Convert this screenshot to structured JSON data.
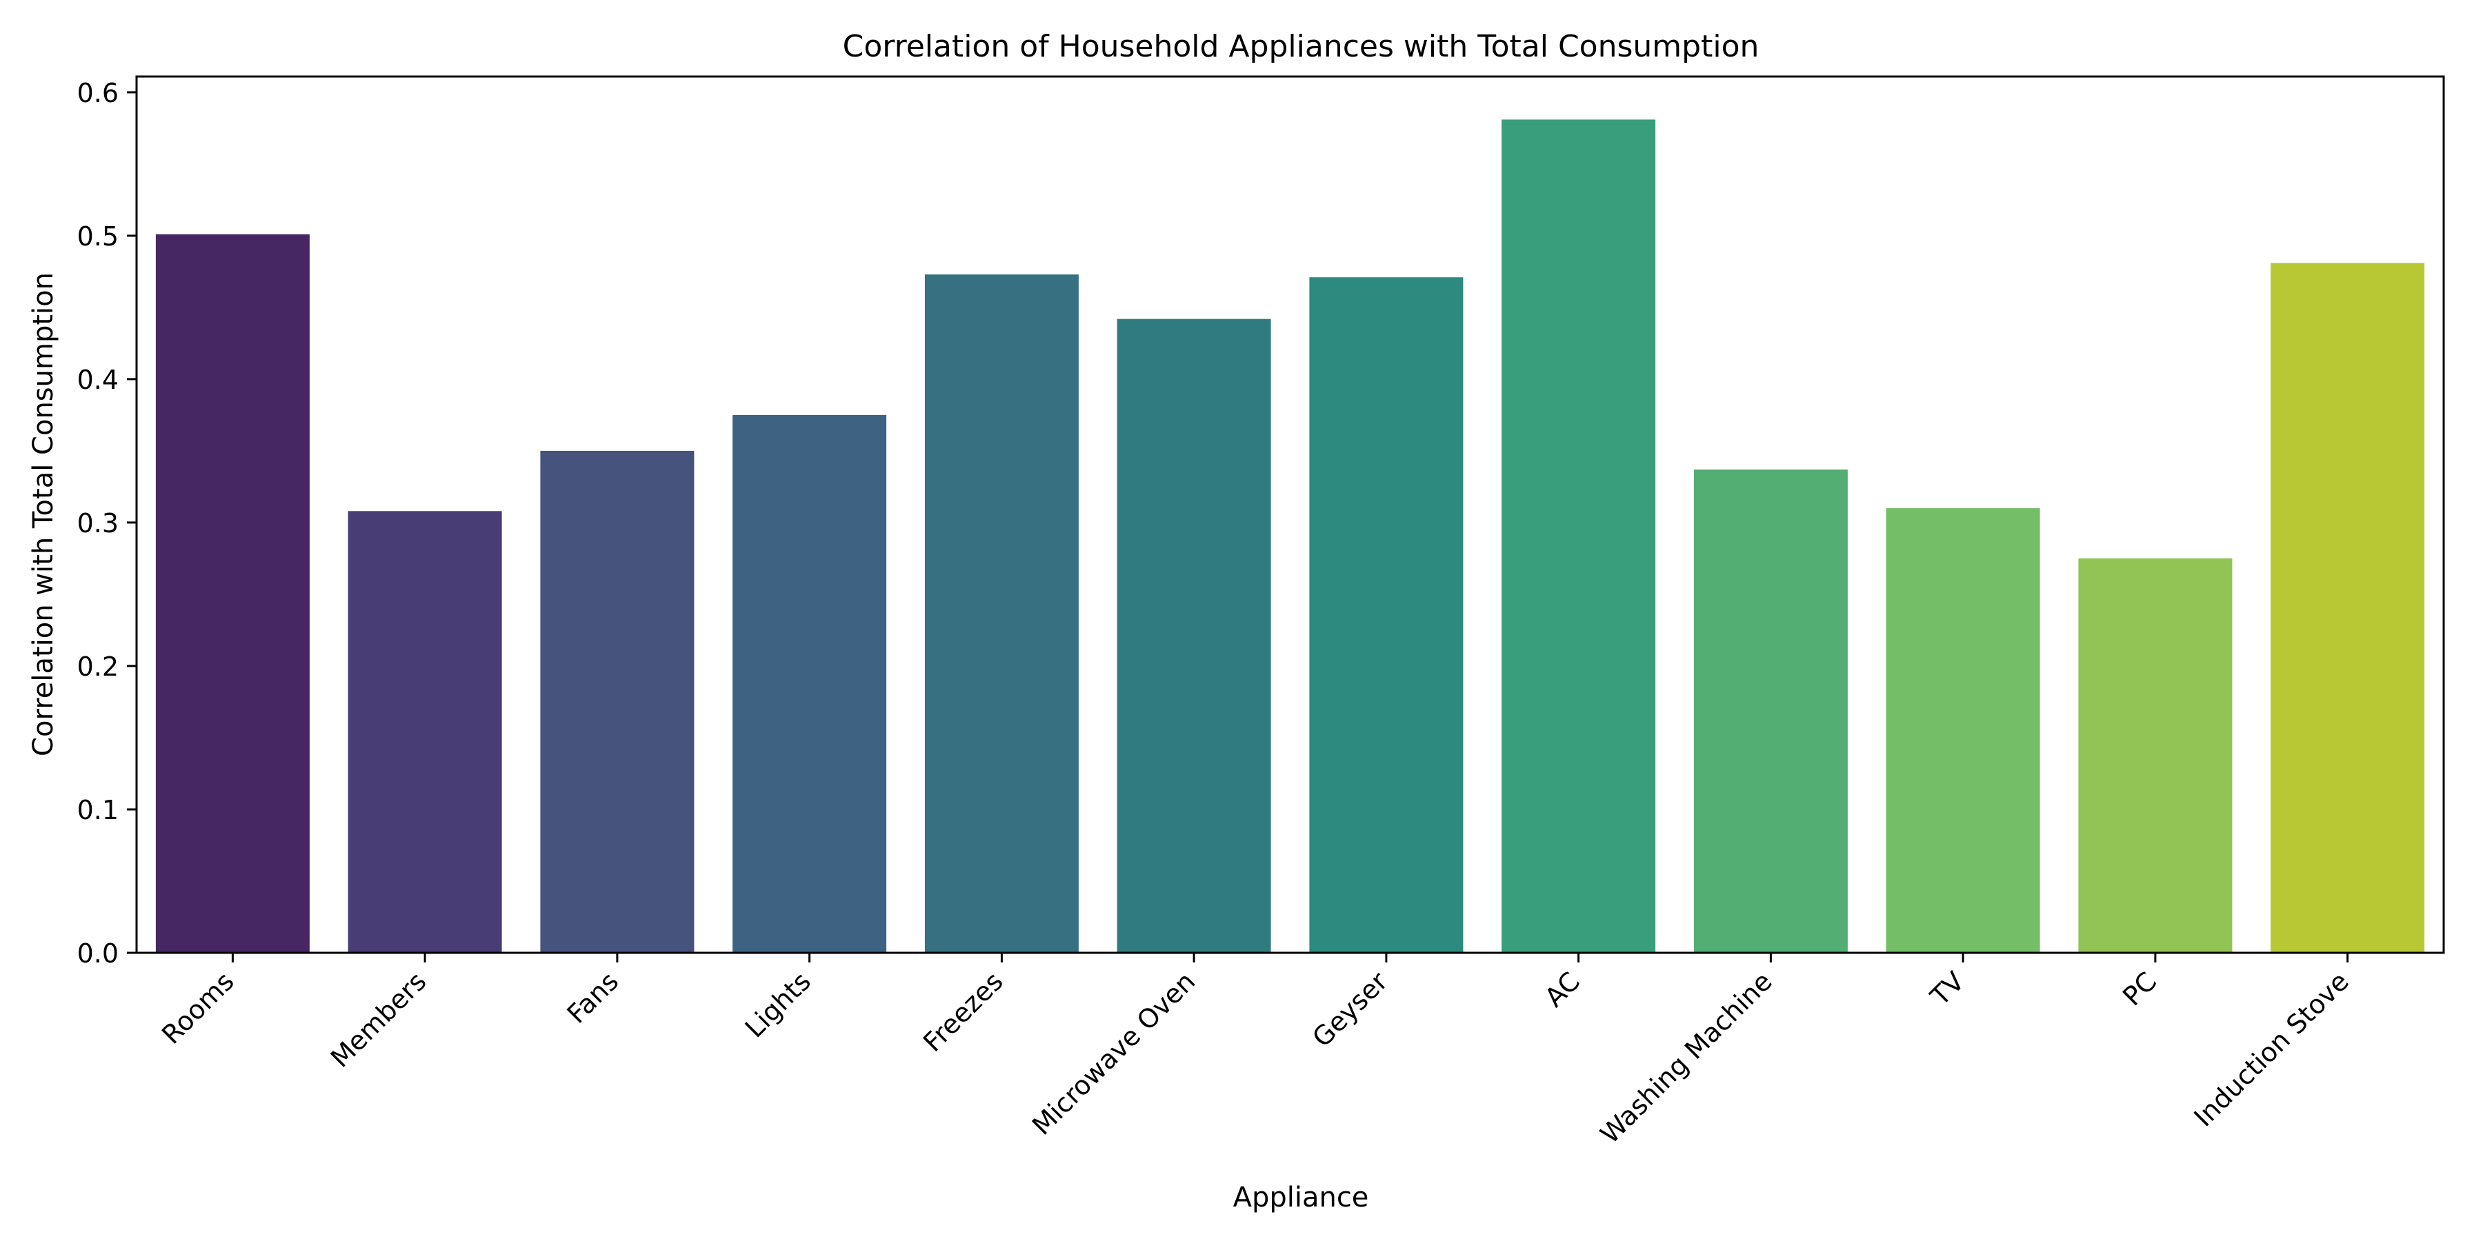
{
  "chart_data": {
    "type": "bar",
    "title": "Correlation of Household Appliances with Total Consumption",
    "xlabel": "Appliance",
    "ylabel": "Correlation with Total Consumption",
    "categories": [
      "Rooms",
      "Members",
      "Fans",
      "Lights",
      "Freezes",
      "Microwave Oven",
      "Geyser",
      "AC",
      "Washing Machine",
      "TV",
      "PC",
      "Induction Stove"
    ],
    "values": [
      0.501,
      0.308,
      0.35,
      0.375,
      0.473,
      0.442,
      0.471,
      0.581,
      0.337,
      0.31,
      0.275,
      0.481
    ],
    "colors": [
      "#472763",
      "#483d75",
      "#46537d",
      "#3e6382",
      "#377080",
      "#2f7b80",
      "#2c8a7f",
      "#389e7c",
      "#52ae72",
      "#73be67",
      "#92c455",
      "#b8c834"
    ],
    "ylim": [
      0,
      0.611
    ],
    "yticks": [
      "0.0",
      "0.1",
      "0.2",
      "0.3",
      "0.4",
      "0.5",
      "0.6"
    ],
    "grid": false,
    "legend": "none"
  }
}
